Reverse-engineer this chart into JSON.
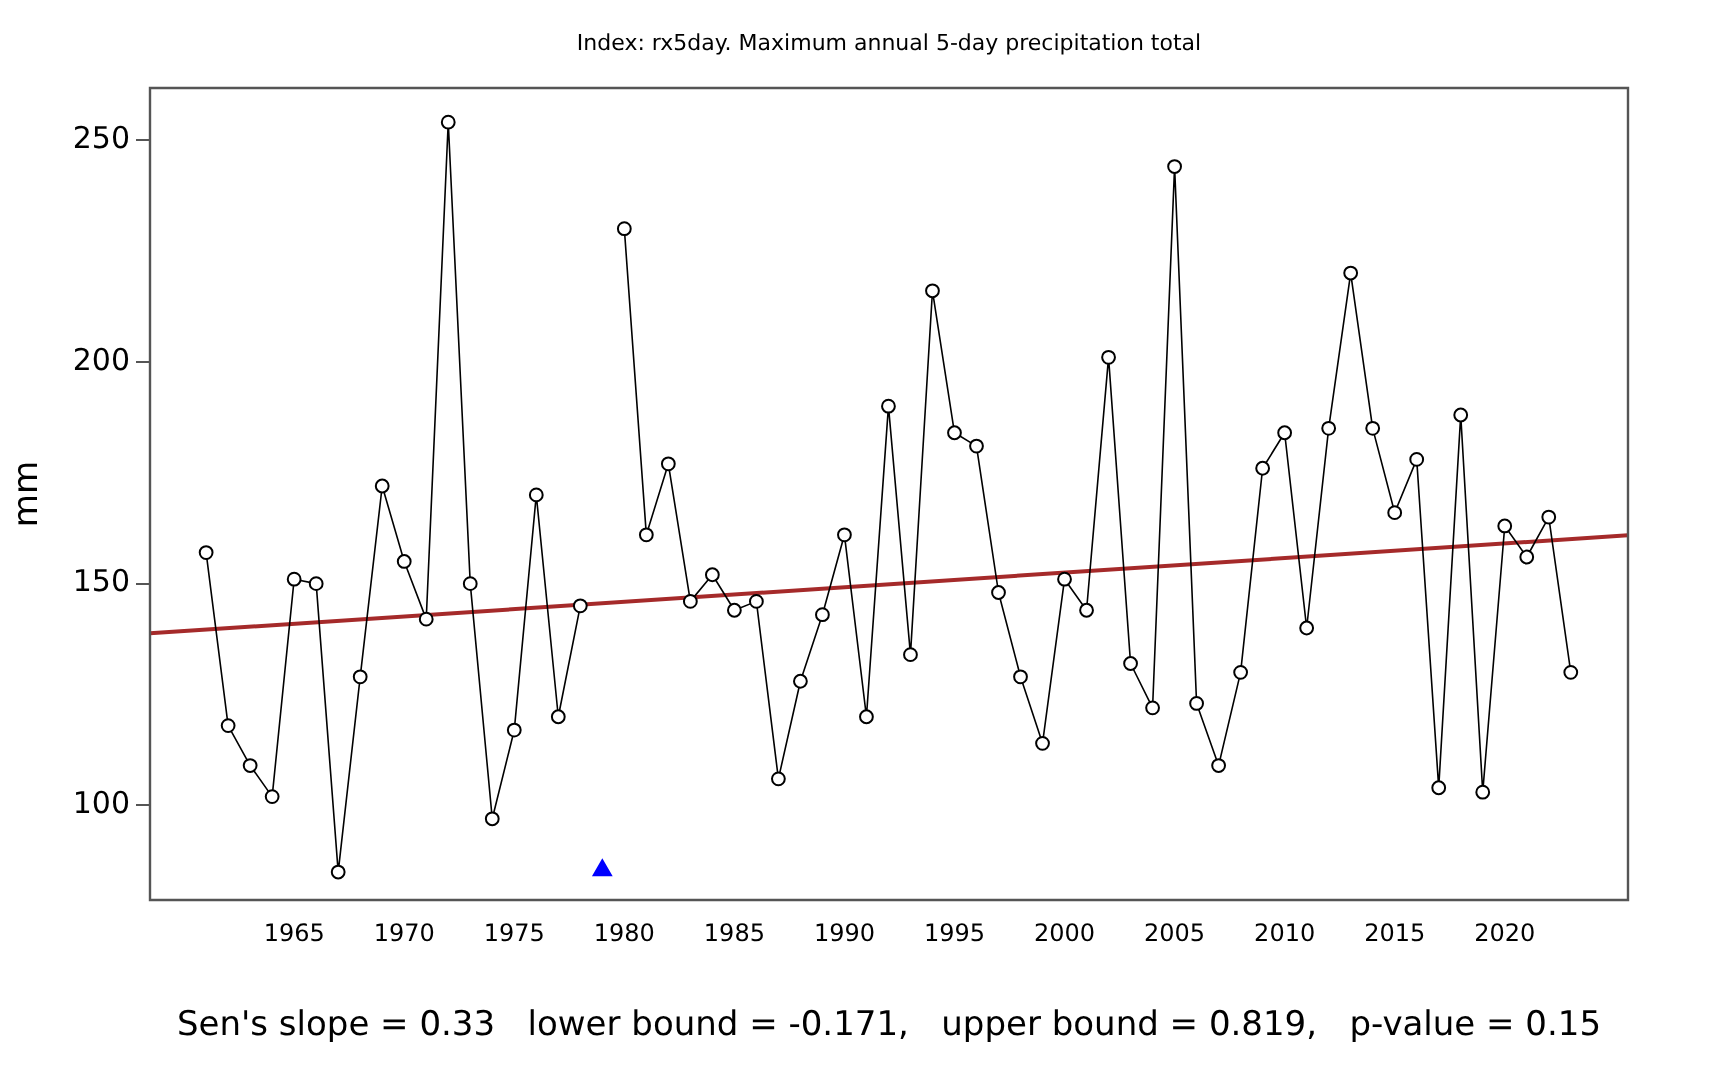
{
  "chart_data": {
    "type": "line",
    "title": "Index: rx5day. Maximum annual 5-day precipitation total",
    "ylabel": "mm",
    "x": [
      1961,
      1962,
      1963,
      1964,
      1965,
      1966,
      1967,
      1968,
      1969,
      1970,
      1971,
      1972,
      1973,
      1974,
      1975,
      1976,
      1977,
      1978,
      1979,
      1980,
      1981,
      1982,
      1983,
      1984,
      1985,
      1986,
      1987,
      1988,
      1989,
      1990,
      1991,
      1992,
      1993,
      1994,
      1995,
      1996,
      1997,
      1998,
      1999,
      2000,
      2001,
      2002,
      2003,
      2004,
      2005,
      2006,
      2007,
      2008,
      2009,
      2010,
      2011,
      2012,
      2013,
      2014,
      2015,
      2016,
      2017,
      2018,
      2019,
      2020,
      2021,
      2022,
      2023
    ],
    "series": [
      {
        "color": "#000000",
        "marker": "circle",
        "values": [
          157,
          118,
          109,
          102,
          151,
          150,
          85,
          129,
          172,
          155,
          142,
          254,
          150,
          97,
          117,
          170,
          120,
          145,
          null,
          230,
          161,
          177,
          146,
          152,
          144,
          146,
          106,
          128,
          143,
          161,
          120,
          190,
          134,
          216,
          184,
          181,
          148,
          129,
          114,
          151,
          144,
          201,
          132,
          122,
          244,
          123,
          109,
          130,
          176,
          184,
          140,
          185,
          220,
          185,
          166,
          178,
          104,
          188,
          103,
          163,
          156,
          165,
          130
        ]
      },
      {
        "type": "line",
        "color": "#a52a2a",
        "marker": "none",
        "x": [
          1958.45,
          2025.6
        ],
        "values": [
          138.8,
          160.9
        ]
      },
      {
        "type": "scatter",
        "color": "#0000ff",
        "marker": "triangle",
        "x": [
          1979
        ],
        "values": [
          85.4
        ]
      }
    ],
    "xlim": [
      1958.45,
      2025.6
    ],
    "xticks": [
      1965,
      1970,
      1975,
      1980,
      1985,
      1990,
      1995,
      2000,
      2005,
      2010,
      2015,
      2020
    ],
    "ylim": [
      78.7,
      261.7
    ],
    "yticks": [
      100,
      150,
      200,
      250
    ],
    "grid": false,
    "legend": false,
    "annotations": [
      "Sen's slope = 0.33   lower bound = -0.171,   upper bound = 0.819,   p-value = 0.15"
    ]
  }
}
